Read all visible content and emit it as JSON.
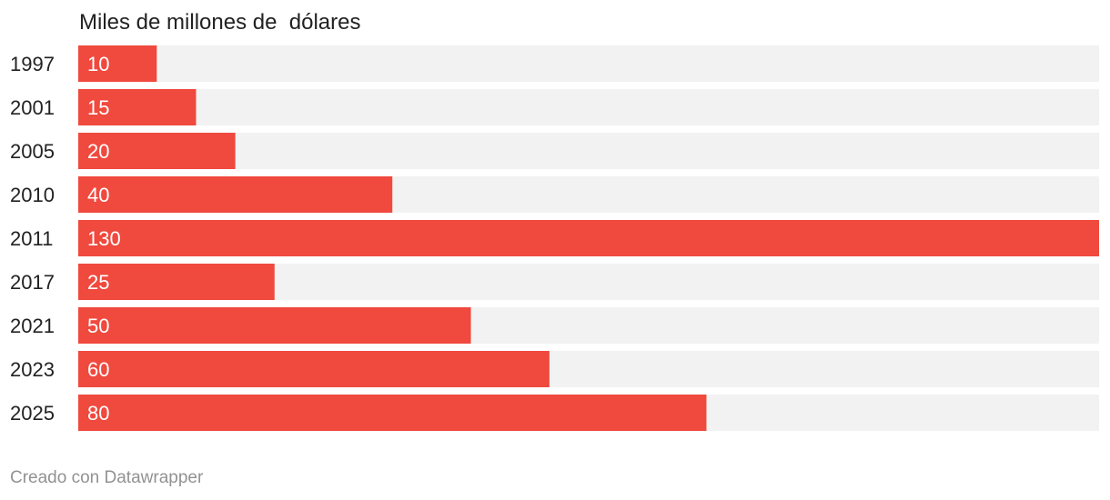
{
  "chart_data": {
    "type": "bar",
    "orientation": "horizontal",
    "title": "Miles de millones de  dólares",
    "categories": [
      "1997",
      "2001",
      "2005",
      "2010",
      "2011",
      "2017",
      "2021",
      "2023",
      "2025"
    ],
    "values": [
      10,
      15,
      20,
      40,
      130,
      25,
      50,
      60,
      80
    ],
    "xlim": [
      0,
      130
    ],
    "grid": false,
    "legend": "none",
    "data_labels": "inside-left"
  },
  "colors": {
    "bar": "#f0493e",
    "track": "#f2f2f2",
    "value_label": "#ffffff",
    "category_label": "#222222"
  },
  "footer": {
    "credit": "Creado con Datawrapper"
  }
}
